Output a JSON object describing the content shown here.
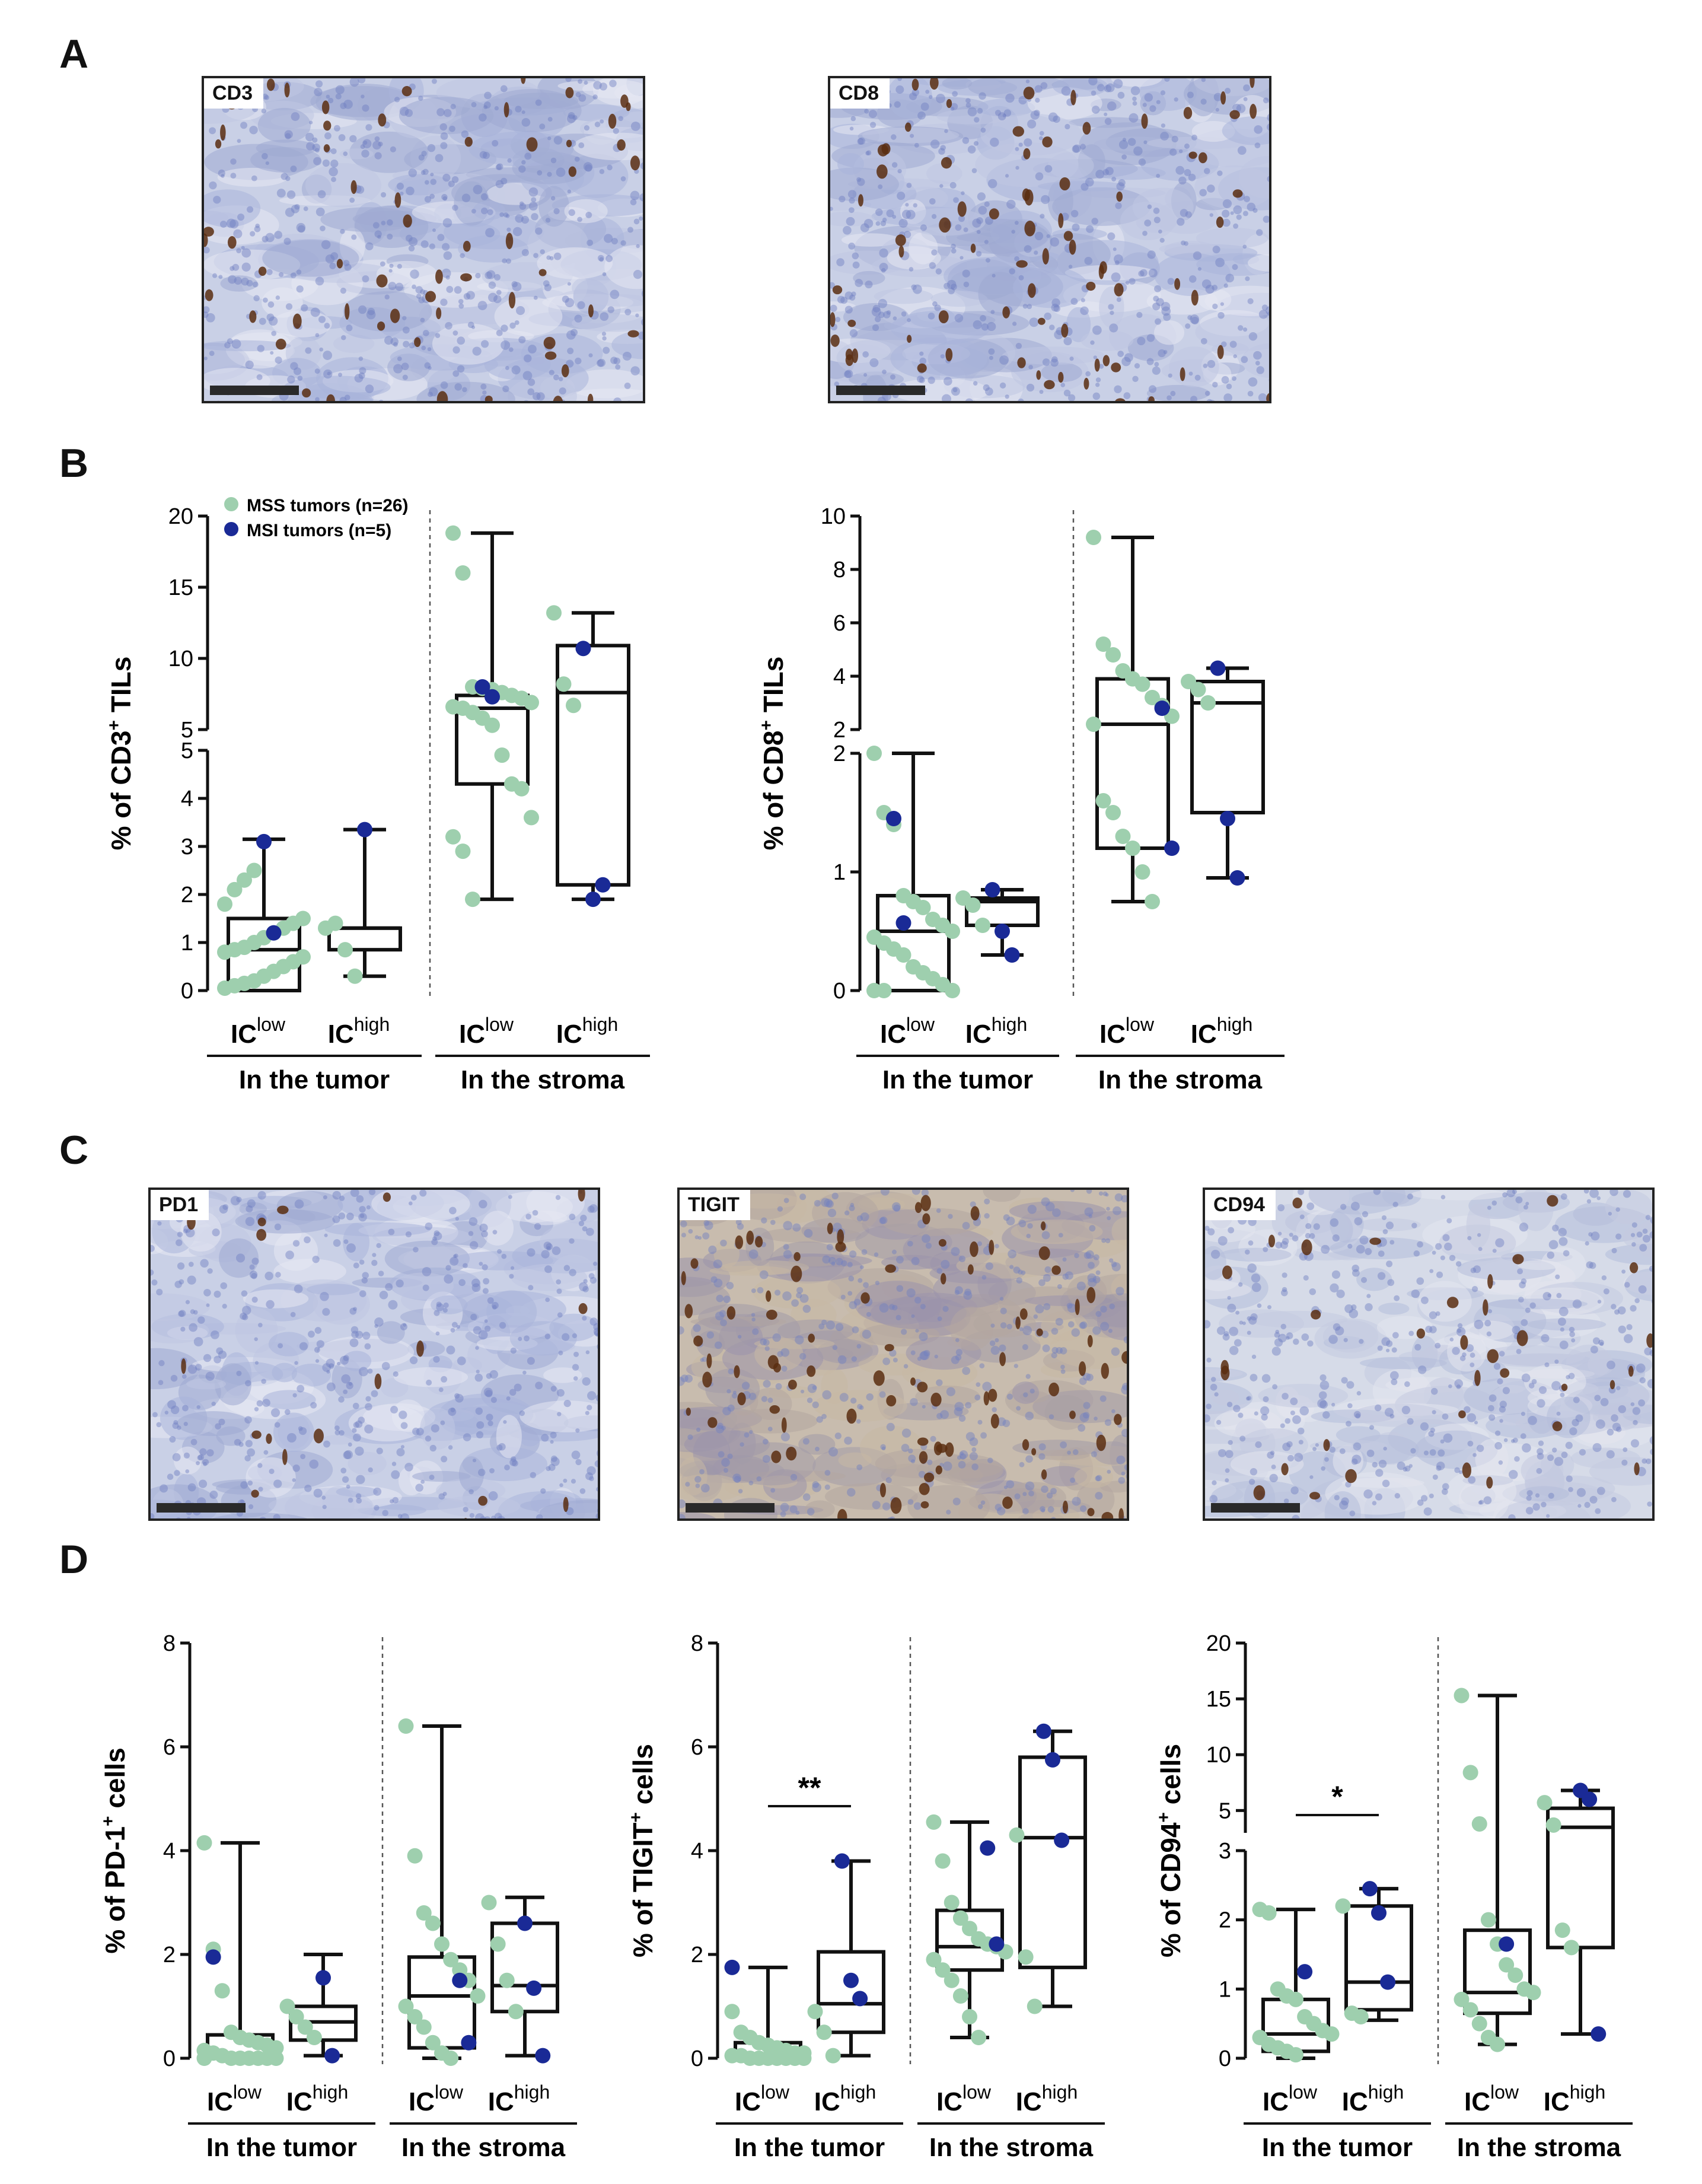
{
  "panels": {
    "A": "A",
    "B": "B",
    "C": "C",
    "D": "D"
  },
  "micrographs": {
    "cd3": {
      "label": "CD3"
    },
    "cd8": {
      "label": "CD8"
    },
    "pd1": {
      "label": "PD1"
    },
    "tigit": {
      "label": "TIGIT"
    },
    "cd94": {
      "label": "CD94"
    }
  },
  "colors": {
    "mss": "#9ecfae",
    "msi": "#1a2a96",
    "box": "#111111"
  },
  "legend": [
    {
      "label": "MSS tumors (n=26)",
      "color": "#9ecfae"
    },
    {
      "label": "MSI tumors (n=5)",
      "color": "#1a2a96"
    }
  ],
  "chart_data": [
    {
      "id": "cd3",
      "type": "box",
      "ylabel": "% of CD3+ TILs",
      "broken_axis": true,
      "lower_ylim": [
        0,
        5
      ],
      "lower_ticks": [
        0,
        1,
        2,
        3,
        4,
        5
      ],
      "upper_ylim": [
        5,
        20
      ],
      "upper_ticks": [
        5,
        10,
        15,
        20
      ],
      "groups": [
        "In the tumor",
        "In the stroma"
      ],
      "categories": [
        {
          "label": "IC",
          "sup": "low",
          "group": "In the tumor",
          "box": {
            "min": 0.0,
            "q1": 0.0,
            "median": 0.85,
            "q3": 1.5,
            "max": 3.15
          },
          "mss": [
            0.05,
            0.1,
            0.15,
            0.2,
            0.3,
            0.4,
            0.5,
            0.6,
            0.7,
            0.8,
            0.85,
            0.9,
            1.0,
            1.1,
            1.2,
            1.3,
            1.4,
            1.5,
            1.8,
            2.1,
            2.3,
            2.5
          ],
          "msi": [
            3.1,
            1.2
          ]
        },
        {
          "label": "IC",
          "sup": "high",
          "group": "In the tumor",
          "box": {
            "min": 0.3,
            "q1": 0.85,
            "median": 1.3,
            "q3": 1.3,
            "max": 3.35
          },
          "mss": [
            1.3,
            1.4,
            0.85,
            0.3
          ],
          "msi": [
            3.35
          ]
        },
        {
          "label": "IC",
          "sup": "low",
          "group": "In the stroma",
          "box": {
            "min": 1.9,
            "q1": 4.3,
            "median": 6.5,
            "q3": 7.4,
            "max": 18.8
          },
          "mss": [
            18.8,
            16.0,
            8.0,
            7.9,
            7.8,
            7.6,
            7.4,
            7.2,
            6.9,
            6.6,
            6.5,
            6.2,
            5.8,
            5.3,
            4.9,
            4.3,
            4.2,
            3.6,
            3.2,
            2.9,
            1.9
          ],
          "msi": [
            8.0,
            7.3
          ]
        },
        {
          "label": "IC",
          "sup": "high",
          "group": "In the stroma",
          "box": {
            "min": 1.9,
            "q1": 2.2,
            "median": 7.6,
            "q3": 10.9,
            "max": 13.2
          },
          "mss": [
            13.2,
            8.2,
            6.7
          ],
          "msi": [
            10.7,
            1.9,
            2.2
          ]
        }
      ]
    },
    {
      "id": "cd8",
      "type": "box",
      "ylabel": "% of CD8+ TILs",
      "broken_axis": true,
      "lower_ylim": [
        0,
        2
      ],
      "lower_ticks": [
        0,
        1,
        2
      ],
      "upper_ylim": [
        2,
        10
      ],
      "upper_ticks": [
        2,
        4,
        6,
        8,
        10
      ],
      "groups": [
        "In the tumor",
        "In the stroma"
      ],
      "categories": [
        {
          "label": "IC",
          "sup": "low",
          "group": "In the tumor",
          "box": {
            "min": 0.0,
            "q1": 0.0,
            "median": 0.5,
            "q3": 0.8,
            "max": 2.0
          },
          "mss": [
            2.0,
            1.5,
            1.4,
            0.8,
            0.75,
            0.7,
            0.6,
            0.55,
            0.5,
            0.45,
            0.4,
            0.35,
            0.3,
            0.2,
            0.15,
            0.1,
            0.05,
            0.0,
            0.0,
            0.0
          ],
          "msi": [
            1.45,
            0.57
          ]
        },
        {
          "label": "IC",
          "sup": "high",
          "group": "In the tumor",
          "box": {
            "min": 0.3,
            "q1": 0.55,
            "median": 0.75,
            "q3": 0.78,
            "max": 0.85
          },
          "mss": [
            0.78,
            0.72,
            0.55
          ],
          "msi": [
            0.85,
            0.5,
            0.3
          ]
        },
        {
          "label": "IC",
          "sup": "low",
          "group": "In the stroma",
          "box": {
            "min": 0.75,
            "q1": 1.2,
            "median": 2.2,
            "q3": 3.9,
            "max": 9.2
          },
          "mss": [
            9.2,
            5.2,
            4.8,
            4.2,
            3.9,
            3.7,
            3.2,
            2.9,
            2.5,
            2.2,
            1.6,
            1.5,
            1.3,
            1.2,
            1.0,
            0.75
          ],
          "msi": [
            2.8,
            1.2
          ]
        },
        {
          "label": "IC",
          "sup": "high",
          "group": "In the stroma",
          "box": {
            "min": 0.95,
            "q1": 1.5,
            "median": 3.0,
            "q3": 3.8,
            "max": 4.3
          },
          "mss": [
            3.8,
            3.5,
            3.0
          ],
          "msi": [
            4.3,
            1.45,
            0.95
          ]
        }
      ]
    },
    {
      "id": "pd1",
      "type": "box",
      "ylabel": "% of PD-1+ cells",
      "broken_axis": false,
      "ylim": [
        0,
        8
      ],
      "ticks": [
        0,
        2,
        4,
        6,
        8
      ],
      "groups": [
        "In the tumor",
        "In the stroma"
      ],
      "categories": [
        {
          "label": "IC",
          "sup": "low",
          "group": "In the tumor",
          "box": {
            "min": 0.0,
            "q1": 0.0,
            "median": 0.0,
            "q3": 0.45,
            "max": 4.15
          },
          "mss": [
            4.15,
            2.1,
            1.3,
            0.5,
            0.4,
            0.35,
            0.3,
            0.25,
            0.2,
            0.15,
            0.1,
            0.05,
            0.0,
            0.0,
            0.0,
            0.0,
            0.0,
            0.0,
            0.0
          ],
          "msi": [
            1.95
          ]
        },
        {
          "label": "IC",
          "sup": "high",
          "group": "In the tumor",
          "box": {
            "min": 0.05,
            "q1": 0.35,
            "median": 0.7,
            "q3": 1.0,
            "max": 2.0
          },
          "mss": [
            1.0,
            0.8,
            0.6,
            0.4
          ],
          "msi": [
            1.55,
            0.05
          ]
        },
        {
          "label": "IC",
          "sup": "low",
          "group": "In the stroma",
          "box": {
            "min": 0.0,
            "q1": 0.2,
            "median": 1.2,
            "q3": 1.95,
            "max": 6.4
          },
          "mss": [
            6.4,
            3.9,
            2.8,
            2.6,
            2.2,
            1.9,
            1.7,
            1.5,
            1.2,
            1.0,
            0.8,
            0.6,
            0.3,
            0.1,
            0.0
          ],
          "msi": [
            1.5,
            0.3
          ]
        },
        {
          "label": "IC",
          "sup": "high",
          "group": "In the stroma",
          "box": {
            "min": 0.05,
            "q1": 0.9,
            "median": 1.4,
            "q3": 2.6,
            "max": 3.1
          },
          "mss": [
            3.0,
            2.2,
            1.5,
            0.9
          ],
          "msi": [
            2.6,
            1.35,
            0.05
          ]
        }
      ]
    },
    {
      "id": "tigit",
      "type": "box",
      "ylabel": "% of TIGIT+ cells",
      "broken_axis": false,
      "ylim": [
        0,
        8
      ],
      "ticks": [
        0,
        2,
        4,
        6,
        8
      ],
      "groups": [
        "In the tumor",
        "In the stroma"
      ],
      "annotation": {
        "text": "**",
        "between": [
          0,
          1
        ]
      },
      "categories": [
        {
          "label": "IC",
          "sup": "low",
          "group": "In the tumor",
          "box": {
            "min": 0.0,
            "q1": 0.0,
            "median": 0.05,
            "q3": 0.3,
            "max": 1.75
          },
          "mss": [
            0.9,
            0.5,
            0.4,
            0.3,
            0.25,
            0.2,
            0.15,
            0.1,
            0.1,
            0.05,
            0.05,
            0.0,
            0.0,
            0.0,
            0.0,
            0.0,
            0.0,
            0.0
          ],
          "msi": [
            1.75
          ]
        },
        {
          "label": "IC",
          "sup": "high",
          "group": "In the tumor",
          "box": {
            "min": 0.05,
            "q1": 0.5,
            "median": 1.05,
            "q3": 2.05,
            "max": 3.8
          },
          "mss": [
            0.9,
            0.5,
            0.05
          ],
          "msi": [
            3.8,
            1.5,
            1.15
          ]
        },
        {
          "label": "IC",
          "sup": "low",
          "group": "In the stroma",
          "box": {
            "min": 0.4,
            "q1": 1.7,
            "median": 2.15,
            "q3": 2.85,
            "max": 4.55
          },
          "mss": [
            4.55,
            3.8,
            3.0,
            2.7,
            2.5,
            2.3,
            2.2,
            2.15,
            2.05,
            1.9,
            1.7,
            1.5,
            1.2,
            0.8,
            0.4
          ],
          "msi": [
            4.05,
            2.2
          ]
        },
        {
          "label": "IC",
          "sup": "high",
          "group": "In the stroma",
          "box": {
            "min": 1.0,
            "q1": 1.75,
            "median": 4.25,
            "q3": 5.8,
            "max": 6.3
          },
          "mss": [
            4.3,
            1.95,
            1.0
          ],
          "msi": [
            6.3,
            5.75,
            4.2
          ]
        }
      ]
    },
    {
      "id": "cd94",
      "type": "box",
      "ylabel": "% of CD94+ cells",
      "broken_axis": true,
      "lower_ylim": [
        0,
        3
      ],
      "lower_ticks": [
        0,
        1,
        2,
        3
      ],
      "upper_ylim": [
        3,
        20
      ],
      "upper_ticks": [
        5,
        10,
        15,
        20
      ],
      "groups": [
        "In the tumor",
        "In the stroma"
      ],
      "annotation": {
        "text": "*",
        "between": [
          0,
          1
        ]
      },
      "categories": [
        {
          "label": "IC",
          "sup": "low",
          "group": "In the tumor",
          "box": {
            "min": 0.0,
            "q1": 0.1,
            "median": 0.35,
            "q3": 0.85,
            "max": 2.15
          },
          "mss": [
            2.15,
            2.1,
            1.0,
            0.9,
            0.85,
            0.6,
            0.5,
            0.4,
            0.35,
            0.3,
            0.2,
            0.15,
            0.1,
            0.05
          ],
          "msi": [
            1.25
          ]
        },
        {
          "label": "IC",
          "sup": "high",
          "group": "In the tumor",
          "box": {
            "min": 0.55,
            "q1": 0.7,
            "median": 1.1,
            "q3": 2.2,
            "max": 2.45
          },
          "mss": [
            2.2,
            0.65,
            0.6
          ],
          "msi": [
            2.45,
            2.1,
            1.1
          ]
        },
        {
          "label": "IC",
          "sup": "low",
          "group": "In the stroma",
          "box": {
            "min": 0.2,
            "q1": 0.65,
            "median": 0.95,
            "q3": 1.85,
            "max": 15.3
          },
          "mss": [
            15.3,
            8.4,
            3.8,
            2.0,
            1.65,
            1.35,
            1.2,
            1.0,
            0.95,
            0.85,
            0.7,
            0.5,
            0.3,
            0.2
          ],
          "msi": [
            1.65
          ]
        },
        {
          "label": "IC",
          "sup": "high",
          "group": "In the stroma",
          "box": {
            "min": 0.35,
            "q1": 1.6,
            "median": 3.5,
            "q3": 5.2,
            "max": 6.8
          },
          "mss": [
            5.7,
            3.7,
            1.85,
            1.6
          ],
          "msi": [
            6.8,
            6.0,
            0.35
          ]
        }
      ]
    }
  ]
}
